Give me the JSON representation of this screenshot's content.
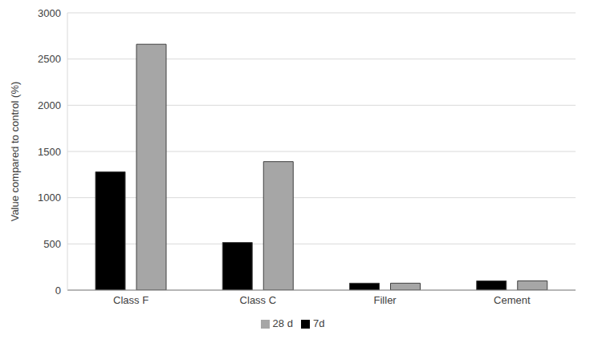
{
  "chart_data": {
    "type": "bar",
    "y_label": "Value compared to control (%)",
    "categories": [
      "Class F",
      "Class C",
      "Filler",
      "Cement"
    ],
    "series": [
      {
        "name": "7d",
        "color": "#000000",
        "values": [
          1280,
          515,
          75,
          100
        ]
      },
      {
        "name": "28 d",
        "color": "#a6a6a6",
        "values": [
          2660,
          1390,
          75,
          100
        ]
      }
    ],
    "ylim": [
      0,
      3000
    ],
    "yticks": [
      0,
      500,
      1000,
      1500,
      2000,
      2500,
      3000
    ],
    "grid": true,
    "legend": "bottom"
  }
}
